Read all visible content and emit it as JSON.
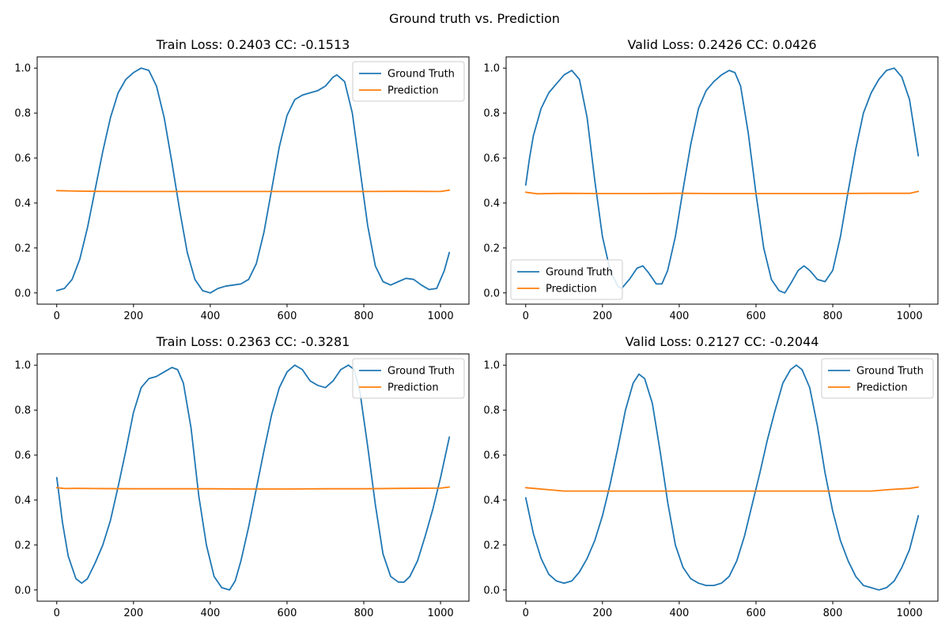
{
  "figure": {
    "suptitle": "Ground truth vs. Prediction"
  },
  "colors": {
    "ground_truth": "#1f77b4",
    "prediction": "#ff7f0e"
  },
  "chart_data": [
    {
      "type": "line",
      "title": "Train Loss: 0.2403 CC: -0.1513",
      "xlim": [
        -51,
        1074
      ],
      "ylim": [
        -0.05,
        1.05
      ],
      "xticks": [
        0,
        200,
        400,
        600,
        800,
        1000
      ],
      "xtick_labels": [
        "0",
        "200",
        "400",
        "600",
        "800",
        "1000"
      ],
      "yticks": [
        0.0,
        0.2,
        0.4,
        0.6,
        0.8,
        1.0
      ],
      "ytick_labels": [
        "0.0",
        "0.2",
        "0.4",
        "0.6",
        "0.8",
        "1.0"
      ],
      "legend": "upper right",
      "series": [
        {
          "name": "Ground Truth",
          "x": [
            0,
            20,
            40,
            60,
            80,
            100,
            120,
            140,
            160,
            180,
            200,
            220,
            240,
            260,
            280,
            300,
            320,
            340,
            360,
            380,
            400,
            420,
            440,
            460,
            480,
            500,
            520,
            540,
            560,
            580,
            600,
            620,
            640,
            660,
            680,
            700,
            720,
            730,
            750,
            770,
            790,
            810,
            830,
            850,
            870,
            890,
            910,
            930,
            950,
            970,
            990,
            1010,
            1023
          ],
          "y": [
            0.01,
            0.02,
            0.06,
            0.15,
            0.29,
            0.46,
            0.63,
            0.78,
            0.89,
            0.95,
            0.98,
            1.0,
            0.99,
            0.92,
            0.78,
            0.58,
            0.37,
            0.18,
            0.06,
            0.01,
            0.0,
            0.02,
            0.03,
            0.035,
            0.04,
            0.06,
            0.13,
            0.27,
            0.46,
            0.65,
            0.79,
            0.86,
            0.88,
            0.89,
            0.9,
            0.92,
            0.96,
            0.97,
            0.94,
            0.8,
            0.55,
            0.3,
            0.12,
            0.05,
            0.035,
            0.05,
            0.065,
            0.06,
            0.035,
            0.015,
            0.02,
            0.1,
            0.18
          ]
        },
        {
          "name": "Prediction",
          "x": [
            0,
            50,
            100,
            200,
            300,
            400,
            500,
            600,
            700,
            800,
            900,
            1000,
            1023
          ],
          "y": [
            0.455,
            0.453,
            0.452,
            0.451,
            0.451,
            0.451,
            0.451,
            0.451,
            0.451,
            0.451,
            0.452,
            0.451,
            0.457
          ]
        }
      ]
    },
    {
      "type": "line",
      "title": "Valid Loss: 0.2426 CC: 0.0426",
      "xlim": [
        -51,
        1074
      ],
      "ylim": [
        -0.05,
        1.05
      ],
      "xticks": [
        0,
        200,
        400,
        600,
        800,
        1000
      ],
      "xtick_labels": [
        "0",
        "200",
        "400",
        "600",
        "800",
        "1000"
      ],
      "yticks": [
        0.0,
        0.2,
        0.4,
        0.6,
        0.8,
        1.0
      ],
      "ytick_labels": [
        "0.0",
        "0.2",
        "0.4",
        "0.6",
        "0.8",
        "1.0"
      ],
      "legend": "lower left",
      "series": [
        {
          "name": "Ground Truth",
          "x": [
            0,
            10,
            20,
            40,
            60,
            80,
            100,
            120,
            140,
            160,
            180,
            200,
            220,
            240,
            250,
            270,
            290,
            305,
            320,
            340,
            355,
            370,
            390,
            410,
            430,
            450,
            470,
            490,
            510,
            530,
            545,
            560,
            580,
            600,
            620,
            640,
            660,
            675,
            690,
            710,
            725,
            740,
            760,
            780,
            800,
            820,
            840,
            860,
            880,
            900,
            920,
            940,
            960,
            980,
            1000,
            1023
          ],
          "y": [
            0.48,
            0.6,
            0.7,
            0.82,
            0.89,
            0.93,
            0.97,
            0.99,
            0.95,
            0.78,
            0.5,
            0.25,
            0.1,
            0.03,
            0.02,
            0.06,
            0.11,
            0.12,
            0.09,
            0.04,
            0.04,
            0.1,
            0.25,
            0.46,
            0.66,
            0.82,
            0.9,
            0.94,
            0.97,
            0.99,
            0.98,
            0.92,
            0.71,
            0.44,
            0.2,
            0.06,
            0.01,
            0.0,
            0.04,
            0.1,
            0.12,
            0.1,
            0.06,
            0.05,
            0.1,
            0.25,
            0.45,
            0.64,
            0.8,
            0.89,
            0.95,
            0.99,
            1.0,
            0.96,
            0.86,
            0.61
          ]
        },
        {
          "name": "Prediction",
          "x": [
            0,
            30,
            100,
            200,
            300,
            400,
            500,
            600,
            700,
            800,
            900,
            1000,
            1023
          ],
          "y": [
            0.448,
            0.441,
            0.443,
            0.442,
            0.442,
            0.443,
            0.442,
            0.442,
            0.442,
            0.442,
            0.443,
            0.443,
            0.452
          ]
        }
      ]
    },
    {
      "type": "line",
      "title": "Train Loss: 0.2363 CC: -0.3281",
      "xlim": [
        -51,
        1074
      ],
      "ylim": [
        -0.05,
        1.05
      ],
      "xticks": [
        0,
        200,
        400,
        600,
        800,
        1000
      ],
      "xtick_labels": [
        "0",
        "200",
        "400",
        "600",
        "800",
        "1000"
      ],
      "yticks": [
        0.0,
        0.2,
        0.4,
        0.6,
        0.8,
        1.0
      ],
      "ytick_labels": [
        "0.0",
        "0.2",
        "0.4",
        "0.6",
        "0.8",
        "1.0"
      ],
      "legend": "upper right",
      "series": [
        {
          "name": "Ground Truth",
          "x": [
            0,
            15,
            30,
            50,
            65,
            80,
            100,
            120,
            140,
            160,
            180,
            200,
            220,
            240,
            260,
            280,
            300,
            315,
            330,
            350,
            370,
            390,
            410,
            430,
            450,
            465,
            480,
            500,
            520,
            540,
            560,
            580,
            600,
            620,
            640,
            660,
            680,
            700,
            720,
            740,
            760,
            775,
            790,
            810,
            830,
            850,
            870,
            890,
            905,
            920,
            940,
            960,
            980,
            1000,
            1023
          ],
          "y": [
            0.5,
            0.3,
            0.15,
            0.05,
            0.03,
            0.05,
            0.12,
            0.2,
            0.31,
            0.46,
            0.62,
            0.79,
            0.9,
            0.94,
            0.95,
            0.97,
            0.99,
            0.98,
            0.92,
            0.72,
            0.42,
            0.2,
            0.06,
            0.01,
            0.0,
            0.04,
            0.13,
            0.28,
            0.45,
            0.62,
            0.78,
            0.9,
            0.97,
            1.0,
            0.98,
            0.93,
            0.91,
            0.9,
            0.93,
            0.98,
            1.0,
            0.98,
            0.88,
            0.64,
            0.38,
            0.16,
            0.06,
            0.035,
            0.035,
            0.06,
            0.13,
            0.24,
            0.36,
            0.5,
            0.68
          ]
        },
        {
          "name": "Prediction",
          "x": [
            0,
            20,
            50,
            100,
            200,
            300,
            400,
            500,
            600,
            700,
            800,
            900,
            1000,
            1023
          ],
          "y": [
            0.455,
            0.451,
            0.452,
            0.451,
            0.45,
            0.45,
            0.45,
            0.449,
            0.449,
            0.45,
            0.45,
            0.452,
            0.453,
            0.458
          ]
        }
      ]
    },
    {
      "type": "line",
      "title": "Valid Loss: 0.2127 CC: -0.2044",
      "xlim": [
        -51,
        1074
      ],
      "ylim": [
        -0.05,
        1.05
      ],
      "xticks": [
        0,
        200,
        400,
        600,
        800,
        1000
      ],
      "xtick_labels": [
        "0",
        "200",
        "400",
        "600",
        "800",
        "1000"
      ],
      "yticks": [
        0.0,
        0.2,
        0.4,
        0.6,
        0.8,
        1.0
      ],
      "ytick_labels": [
        "0.0",
        "0.2",
        "0.4",
        "0.6",
        "0.8",
        "1.0"
      ],
      "legend": "upper right",
      "series": [
        {
          "name": "Ground Truth",
          "x": [
            0,
            20,
            40,
            60,
            80,
            100,
            120,
            140,
            160,
            180,
            200,
            220,
            240,
            260,
            280,
            295,
            310,
            330,
            350,
            370,
            390,
            410,
            430,
            450,
            470,
            490,
            510,
            530,
            550,
            570,
            590,
            610,
            630,
            650,
            670,
            690,
            705,
            720,
            740,
            760,
            780,
            800,
            820,
            840,
            860,
            880,
            900,
            920,
            940,
            960,
            980,
            1000,
            1023
          ],
          "y": [
            0.41,
            0.25,
            0.14,
            0.07,
            0.04,
            0.03,
            0.04,
            0.08,
            0.14,
            0.22,
            0.33,
            0.47,
            0.63,
            0.8,
            0.92,
            0.96,
            0.94,
            0.83,
            0.62,
            0.39,
            0.2,
            0.1,
            0.05,
            0.03,
            0.02,
            0.02,
            0.03,
            0.06,
            0.13,
            0.24,
            0.38,
            0.52,
            0.67,
            0.8,
            0.92,
            0.98,
            1.0,
            0.98,
            0.9,
            0.73,
            0.52,
            0.35,
            0.22,
            0.13,
            0.06,
            0.02,
            0.01,
            0.0,
            0.01,
            0.04,
            0.1,
            0.18,
            0.33
          ]
        },
        {
          "name": "Prediction",
          "x": [
            0,
            20,
            60,
            100,
            200,
            300,
            400,
            500,
            600,
            700,
            800,
            900,
            950,
            1000,
            1023
          ],
          "y": [
            0.455,
            0.452,
            0.446,
            0.44,
            0.44,
            0.44,
            0.44,
            0.44,
            0.44,
            0.44,
            0.44,
            0.44,
            0.447,
            0.452,
            0.458
          ]
        }
      ]
    }
  ]
}
